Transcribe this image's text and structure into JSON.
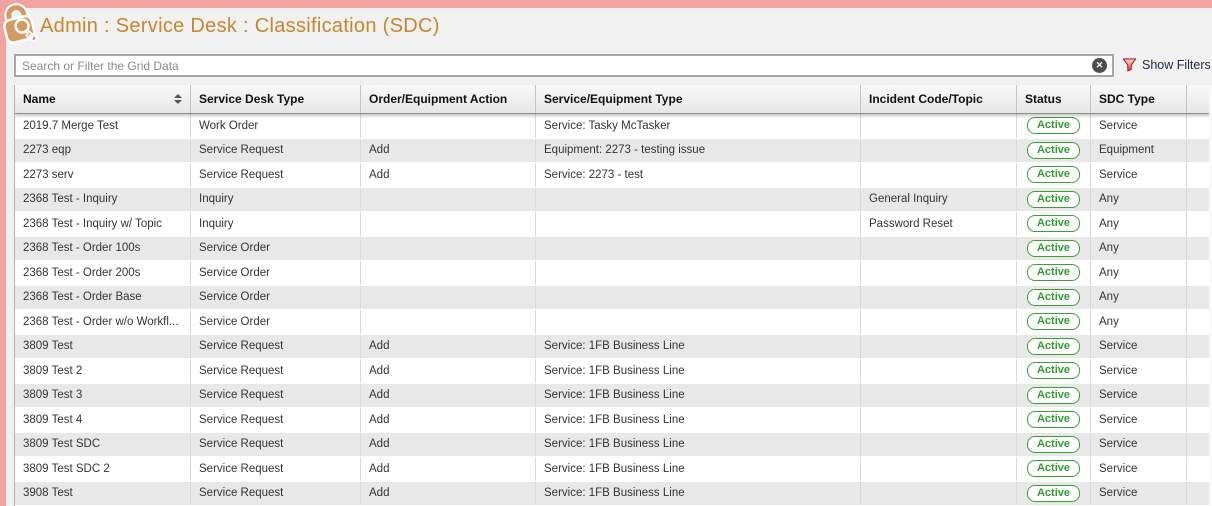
{
  "page": {
    "title": "Admin : Service Desk : Classification (SDC)"
  },
  "search": {
    "placeholder": "Search or Filter the Grid Data",
    "value": "",
    "show_filters_label": "Show Filters"
  },
  "icons": {
    "header_icon": "lock-and-key-icon",
    "clear_icon": "close-icon",
    "filter_icon": "filter-funnel-icon",
    "sort_icon": "sort-up-down-icon"
  },
  "colors": {
    "accent_pink": "#f2a39f",
    "title_orange": "#c8862c",
    "icon_tan": "#d59a63",
    "filter_red": "#d42a1e",
    "link_navy": "#1c2940",
    "badge_green_border": "#39a331",
    "badge_green_text": "#2f9e2f",
    "row_alt_gray": "#e8e8e8"
  },
  "grid": {
    "columns": [
      "Name",
      "Service Desk Type",
      "Order/Equipment Action",
      "Service/Equipment Type",
      "Incident Code/Topic",
      "Status",
      "SDC Type"
    ],
    "rows": [
      [
        "2019.7 Merge Test",
        "Work Order",
        "",
        "Service: Tasky McTasker",
        "",
        "Active",
        "Service"
      ],
      [
        "2273 eqp",
        "Service Request",
        "Add",
        "Equipment: 2273 - testing issue",
        "",
        "Active",
        "Equipment"
      ],
      [
        "2273 serv",
        "Service Request",
        "Add",
        "Service: 2273 - test",
        "",
        "Active",
        "Service"
      ],
      [
        "2368 Test - Inquiry",
        "Inquiry",
        "",
        "",
        "General Inquiry",
        "Active",
        "Any"
      ],
      [
        "2368 Test - Inquiry w/ Topic",
        "Inquiry",
        "",
        "",
        "Password Reset",
        "Active",
        "Any"
      ],
      [
        "2368 Test - Order 100s",
        "Service Order",
        "",
        "",
        "",
        "Active",
        "Any"
      ],
      [
        "2368 Test - Order 200s",
        "Service Order",
        "",
        "",
        "",
        "Active",
        "Any"
      ],
      [
        "2368 Test - Order Base",
        "Service Order",
        "",
        "",
        "",
        "Active",
        "Any"
      ],
      [
        "2368 Test - Order w/o Workfl...",
        "Service Order",
        "",
        "",
        "",
        "Active",
        "Any"
      ],
      [
        "3809 Test",
        "Service Request",
        "Add",
        "Service: 1FB Business Line",
        "",
        "Active",
        "Service"
      ],
      [
        "3809 Test 2",
        "Service Request",
        "Add",
        "Service: 1FB Business Line",
        "",
        "Active",
        "Service"
      ],
      [
        "3809 Test 3",
        "Service Request",
        "Add",
        "Service: 1FB Business Line",
        "",
        "Active",
        "Service"
      ],
      [
        "3809 Test 4",
        "Service Request",
        "Add",
        "Service: 1FB Business Line",
        "",
        "Active",
        "Service"
      ],
      [
        "3809 Test SDC",
        "Service Request",
        "Add",
        "Service: 1FB Business Line",
        "",
        "Active",
        "Service"
      ],
      [
        "3809 Test SDC 2",
        "Service Request",
        "Add",
        "Service: 1FB Business Line",
        "",
        "Active",
        "Service"
      ],
      [
        "3908 Test",
        "Service Request",
        "Add",
        "Service: 1FB Business Line",
        "",
        "Active",
        "Service"
      ]
    ]
  }
}
